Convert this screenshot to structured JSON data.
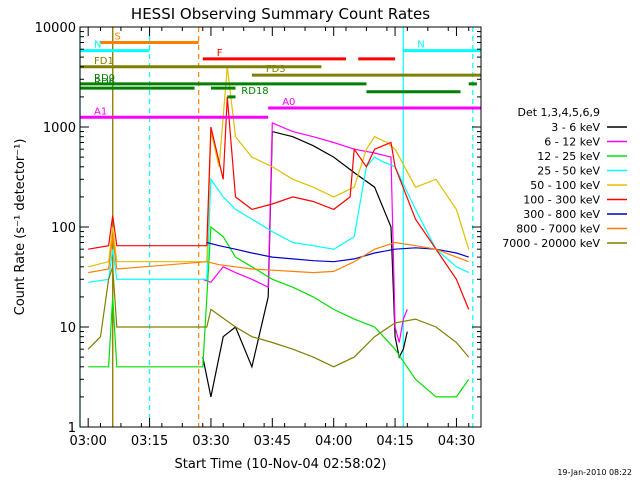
{
  "chart_data": {
    "type": "line",
    "title": "HESSI Observing Summary Count Rates",
    "xlabel": "Start Time (10-Nov-04 02:58:02)",
    "ylabel": "Count Rate (s⁻¹ detector⁻¹)",
    "y_scale": "log",
    "ylim": [
      1,
      10000
    ],
    "xlim": [
      "02:58",
      "04:36"
    ],
    "x_tick_labels": [
      "03:00",
      "03:15",
      "03:30",
      "03:45",
      "04:00",
      "04:15",
      "04:30"
    ],
    "y_tick_labels": [
      "1",
      "10",
      "100",
      "1000",
      "10000"
    ],
    "grid": false,
    "legend_title": "Det 1,3,4,5,6,9",
    "legend_position": "right",
    "footer": "19-Jan-2010 08:22",
    "series": [
      {
        "name": "3 - 6 keV",
        "color": "#000000",
        "x": [
          "03:28",
          "03:30",
          "03:33",
          "03:36",
          "03:40",
          "03:44",
          "03:45",
          "03:50",
          "03:55",
          "04:00",
          "04:05",
          "04:10",
          "04:14",
          "04:15",
          "04:16",
          "04:17",
          "04:18"
        ],
        "y": [
          5,
          2,
          8,
          10,
          4,
          20,
          900,
          800,
          650,
          500,
          350,
          250,
          100,
          8,
          5,
          6,
          9
        ]
      },
      {
        "name": "6 - 12 keV",
        "color": "#ff00ff",
        "x": [
          "03:28",
          "03:30",
          "03:33",
          "03:36",
          "03:40",
          "03:44",
          "03:45",
          "03:50",
          "03:55",
          "04:00",
          "04:05",
          "04:10",
          "04:14",
          "04:15",
          "04:16",
          "04:17",
          "04:18"
        ],
        "y": [
          30,
          28,
          40,
          35,
          30,
          25,
          1100,
          900,
          800,
          700,
          600,
          550,
          500,
          10,
          7,
          12,
          15
        ]
      },
      {
        "name": "12 - 25 keV",
        "color": "#00e000",
        "x": [
          "03:00",
          "03:05",
          "03:06",
          "03:07",
          "03:08",
          "03:28",
          "03:30",
          "03:33",
          "03:36",
          "03:40",
          "03:45",
          "03:50",
          "03:55",
          "04:00",
          "04:05",
          "04:10",
          "04:15",
          "04:20",
          "04:25",
          "04:30",
          "04:33"
        ],
        "y": [
          4,
          4,
          20,
          4,
          4,
          4,
          100,
          80,
          50,
          40,
          30,
          25,
          20,
          15,
          12,
          10,
          6,
          3,
          2,
          2,
          3
        ]
      },
      {
        "name": "25 - 50 keV",
        "color": "#00ffff",
        "x": [
          "03:00",
          "03:05",
          "03:06",
          "03:07",
          "03:29",
          "03:30",
          "03:33",
          "03:36",
          "03:40",
          "03:45",
          "03:50",
          "03:55",
          "04:00",
          "04:05",
          "04:08",
          "04:10",
          "04:12",
          "04:15",
          "04:20",
          "04:25",
          "04:30",
          "04:33"
        ],
        "y": [
          28,
          30,
          60,
          30,
          30,
          300,
          200,
          150,
          120,
          90,
          70,
          65,
          60,
          80,
          400,
          500,
          450,
          400,
          150,
          60,
          40,
          35
        ]
      },
      {
        "name": "50 - 100 keV",
        "color": "#e0c000",
        "x": [
          "03:00",
          "03:05",
          "03:06",
          "03:07",
          "03:29",
          "03:30",
          "03:32",
          "03:34",
          "03:36",
          "03:40",
          "03:45",
          "03:50",
          "03:55",
          "04:00",
          "04:05",
          "04:08",
          "04:10",
          "04:13",
          "04:15",
          "04:20",
          "04:25",
          "04:30",
          "04:33"
        ],
        "y": [
          40,
          45,
          100,
          45,
          45,
          900,
          400,
          4000,
          800,
          500,
          400,
          300,
          250,
          200,
          250,
          600,
          800,
          700,
          600,
          250,
          300,
          150,
          60
        ]
      },
      {
        "name": "100 - 300 keV",
        "color": "#ff0000",
        "x": [
          "03:00",
          "03:05",
          "03:06",
          "03:07",
          "03:29",
          "03:30",
          "03:33",
          "03:34",
          "03:36",
          "03:40",
          "03:45",
          "03:50",
          "03:55",
          "04:00",
          "04:04",
          "04:05",
          "04:08",
          "04:10",
          "04:14",
          "04:15",
          "04:20",
          "04:25",
          "04:30",
          "04:33"
        ],
        "y": [
          60,
          65,
          130,
          65,
          65,
          1000,
          300,
          2000,
          200,
          150,
          170,
          200,
          180,
          150,
          200,
          600,
          400,
          600,
          700,
          400,
          120,
          60,
          30,
          15
        ]
      },
      {
        "name": "300 - 800 keV",
        "color": "#0000cc",
        "x": [
          "03:29",
          "03:32",
          "03:36",
          "03:40",
          "03:45",
          "03:50",
          "03:55",
          "04:00",
          "04:05",
          "04:10",
          "04:15",
          "04:20",
          "04:25",
          "04:30",
          "04:33"
        ],
        "y": [
          70,
          65,
          60,
          55,
          50,
          48,
          46,
          45,
          48,
          55,
          60,
          62,
          60,
          55,
          50
        ]
      },
      {
        "name": "800 - 7000 keV",
        "color": "#ff8000",
        "x": [
          "03:00",
          "03:05",
          "03:06",
          "03:07",
          "03:29",
          "03:32",
          "03:36",
          "03:40",
          "03:45",
          "03:50",
          "03:55",
          "04:00",
          "04:05",
          "04:10",
          "04:15",
          "04:20",
          "04:25",
          "04:30",
          "04:33"
        ],
        "y": [
          35,
          38,
          80,
          38,
          45,
          42,
          40,
          38,
          37,
          36,
          35,
          36,
          45,
          60,
          70,
          65,
          60,
          50,
          45
        ]
      },
      {
        "name": "7000 - 20000 keV",
        "color": "#808000",
        "x": [
          "03:00",
          "03:03",
          "03:05",
          "03:06",
          "03:07",
          "03:29",
          "03:30",
          "03:36",
          "03:40",
          "03:45",
          "03:50",
          "03:55",
          "04:00",
          "04:05",
          "04:10",
          "04:15",
          "04:20",
          "04:25",
          "04:30",
          "04:33"
        ],
        "y": [
          6,
          8,
          30,
          40,
          10,
          10,
          15,
          10,
          8,
          7,
          6,
          5,
          4,
          5,
          8,
          11,
          12,
          10,
          7,
          5
        ]
      }
    ],
    "annotations": [
      {
        "label": "S",
        "color": "#ff8000",
        "y": 7000,
        "x_start": "03:03",
        "x_end": "03:27"
      },
      {
        "label": "N",
        "color": "#00ffff",
        "y": 5800,
        "x_start": "02:58",
        "x_end": "03:15"
      },
      {
        "label": "N",
        "color": "#00ffff",
        "y": 5800,
        "x_start": "04:17",
        "x_end": "04:36"
      },
      {
        "label": "F",
        "color": "#ff0000",
        "y": 4800,
        "x_start": "03:28",
        "x_end": "04:03"
      },
      {
        "label": "",
        "color": "#ff0000",
        "y": 4800,
        "x_start": "04:06",
        "x_end": "04:15"
      },
      {
        "label": "FD1",
        "color": "#808000",
        "y": 4000,
        "x_start": "02:58",
        "x_end": "03:57"
      },
      {
        "label": "FD3",
        "color": "#808000",
        "y": 3300,
        "x_start": "03:40",
        "x_end": "04:36"
      },
      {
        "label": "RD0",
        "color": "#008000",
        "y": 2700,
        "x_start": "02:58",
        "x_end": "04:08"
      },
      {
        "label": "",
        "color": "#008000",
        "y": 2700,
        "x_start": "04:33",
        "x_end": "04:35"
      },
      {
        "label": "RD6",
        "color": "#008000",
        "y": 2450,
        "x_start": "02:58",
        "x_end": "03:26"
      },
      {
        "label": "",
        "color": "#008000",
        "y": 2450,
        "x_start": "03:30",
        "x_end": "03:36"
      },
      {
        "label": "",
        "color": "#008000",
        "y": 2250,
        "x_start": "04:08",
        "x_end": "04:31"
      },
      {
        "label": "RD18",
        "color": "#008000",
        "y": 2000,
        "x_start": "03:34",
        "x_end": "03:36"
      },
      {
        "label": "A0",
        "color": "#ff00ff",
        "y": 1550,
        "x_start": "03:44",
        "x_end": "04:36"
      },
      {
        "label": "A1",
        "color": "#ff00ff",
        "y": 1250,
        "x_start": "02:58",
        "x_end": "03:44"
      }
    ],
    "vertical_lines": [
      {
        "x": "02:58",
        "color": "#00ffff",
        "style": "solid"
      },
      {
        "x": "03:06",
        "color": "#ff8000",
        "style": "solid"
      },
      {
        "x": "03:06",
        "color": "#808000",
        "style": "solid"
      },
      {
        "x": "03:15",
        "color": "#00ffff",
        "style": "dashed"
      },
      {
        "x": "03:27",
        "color": "#ff8000",
        "style": "dashed"
      },
      {
        "x": "04:17",
        "color": "#00ffff",
        "style": "solid"
      },
      {
        "x": "04:34",
        "color": "#00ffff",
        "style": "dashed"
      }
    ]
  }
}
